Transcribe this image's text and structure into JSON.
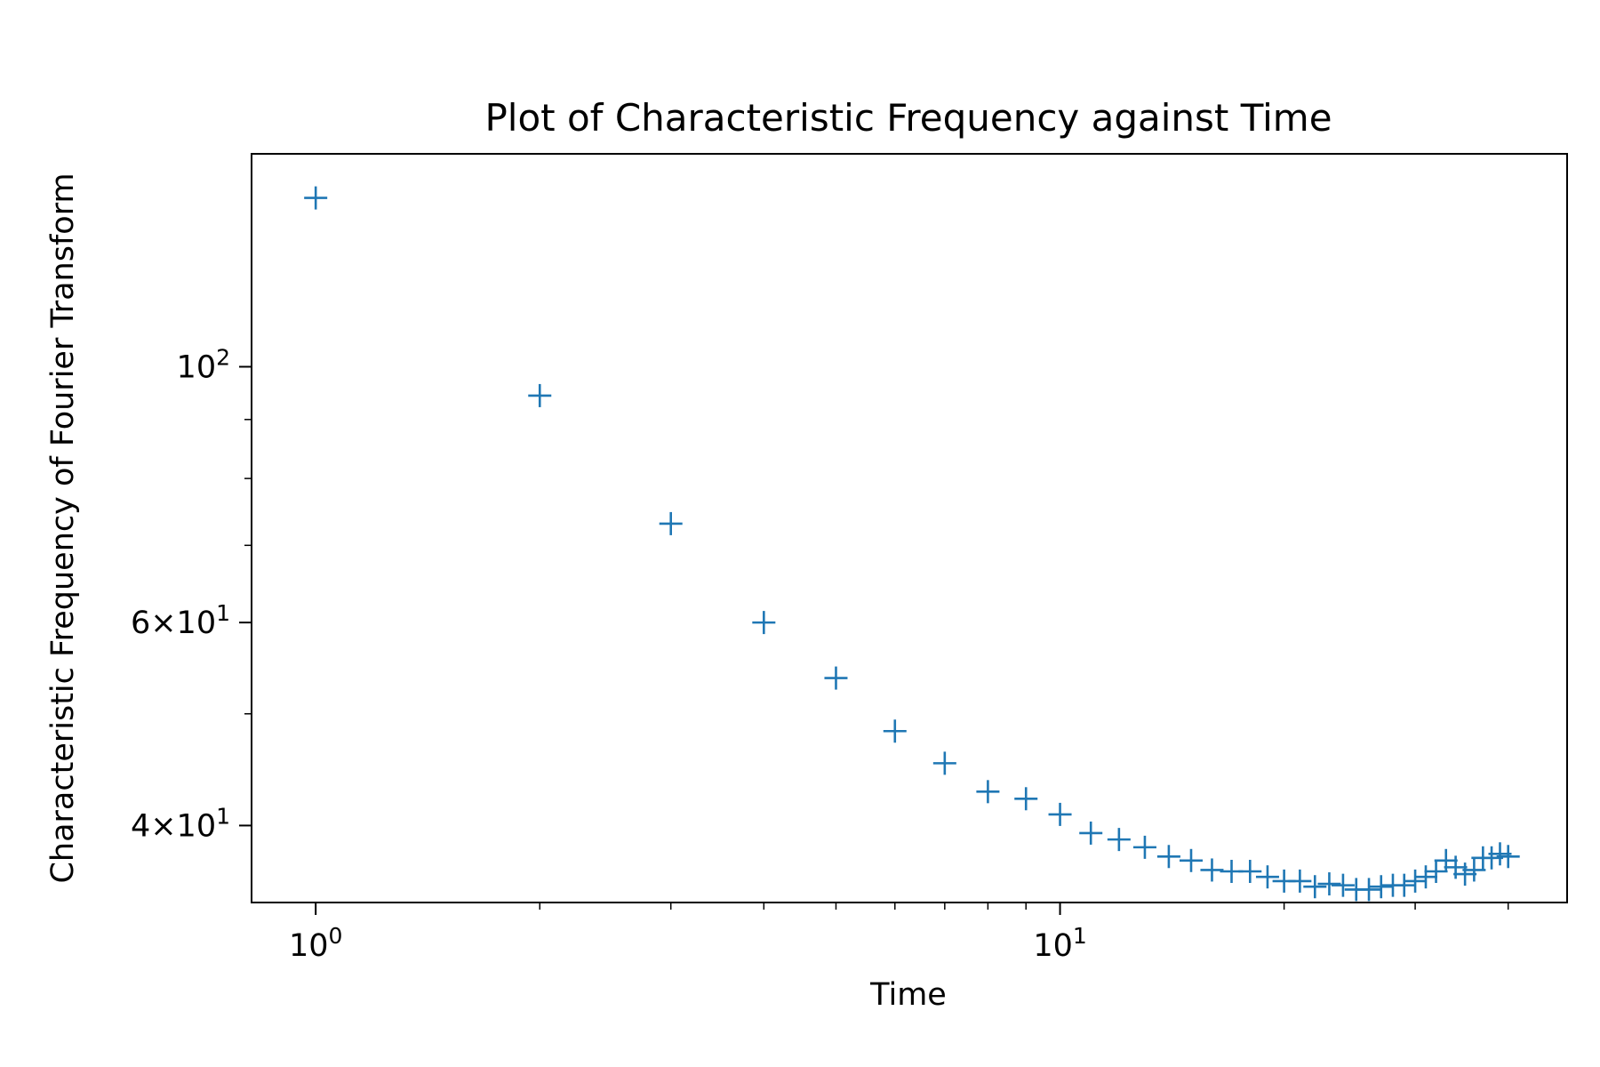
{
  "chart_data": {
    "type": "scatter",
    "title": "Plot of Characteristic Frequency against Time",
    "xlabel": "Time",
    "ylabel": "Characteristic Frequency of Fourier Transform",
    "xscale": "log",
    "yscale": "log",
    "xlim": [
      0.82,
      48
    ],
    "ylim": [
      34.3,
      153
    ],
    "grid": false,
    "marker": "+",
    "color": "#1f77b4",
    "x_ticks": [
      {
        "value": 1,
        "base": "10",
        "exp": "0"
      },
      {
        "value": 10,
        "base": "10",
        "exp": "1"
      }
    ],
    "y_ticks": [
      {
        "value": 100,
        "base": "10",
        "exp": "2"
      },
      {
        "value": 60,
        "base": "6×10",
        "exp": "1"
      },
      {
        "value": 40,
        "base": "4×10",
        "exp": "1"
      }
    ],
    "x": [
      1,
      2,
      3,
      4,
      5,
      6,
      7,
      8,
      9,
      10,
      11,
      12,
      13,
      14,
      15,
      16,
      17,
      18,
      19,
      20,
      21,
      22,
      23,
      24,
      25,
      26,
      27,
      28,
      29,
      30,
      31,
      32,
      33,
      34,
      35,
      36,
      37,
      38,
      39,
      40
    ],
    "y": [
      140.1,
      94.4,
      73.1,
      60.0,
      53.7,
      48.3,
      45.3,
      42.8,
      42.2,
      40.9,
      39.4,
      38.9,
      38.3,
      37.6,
      37.3,
      36.6,
      36.5,
      36.5,
      36.1,
      35.8,
      35.8,
      35.4,
      35.6,
      35.5,
      35.2,
      35.2,
      35.4,
      35.5,
      35.5,
      35.8,
      36.1,
      36.5,
      37.3,
      36.8,
      36.3,
      36.6,
      37.5,
      37.5,
      37.8,
      37.6
    ]
  }
}
